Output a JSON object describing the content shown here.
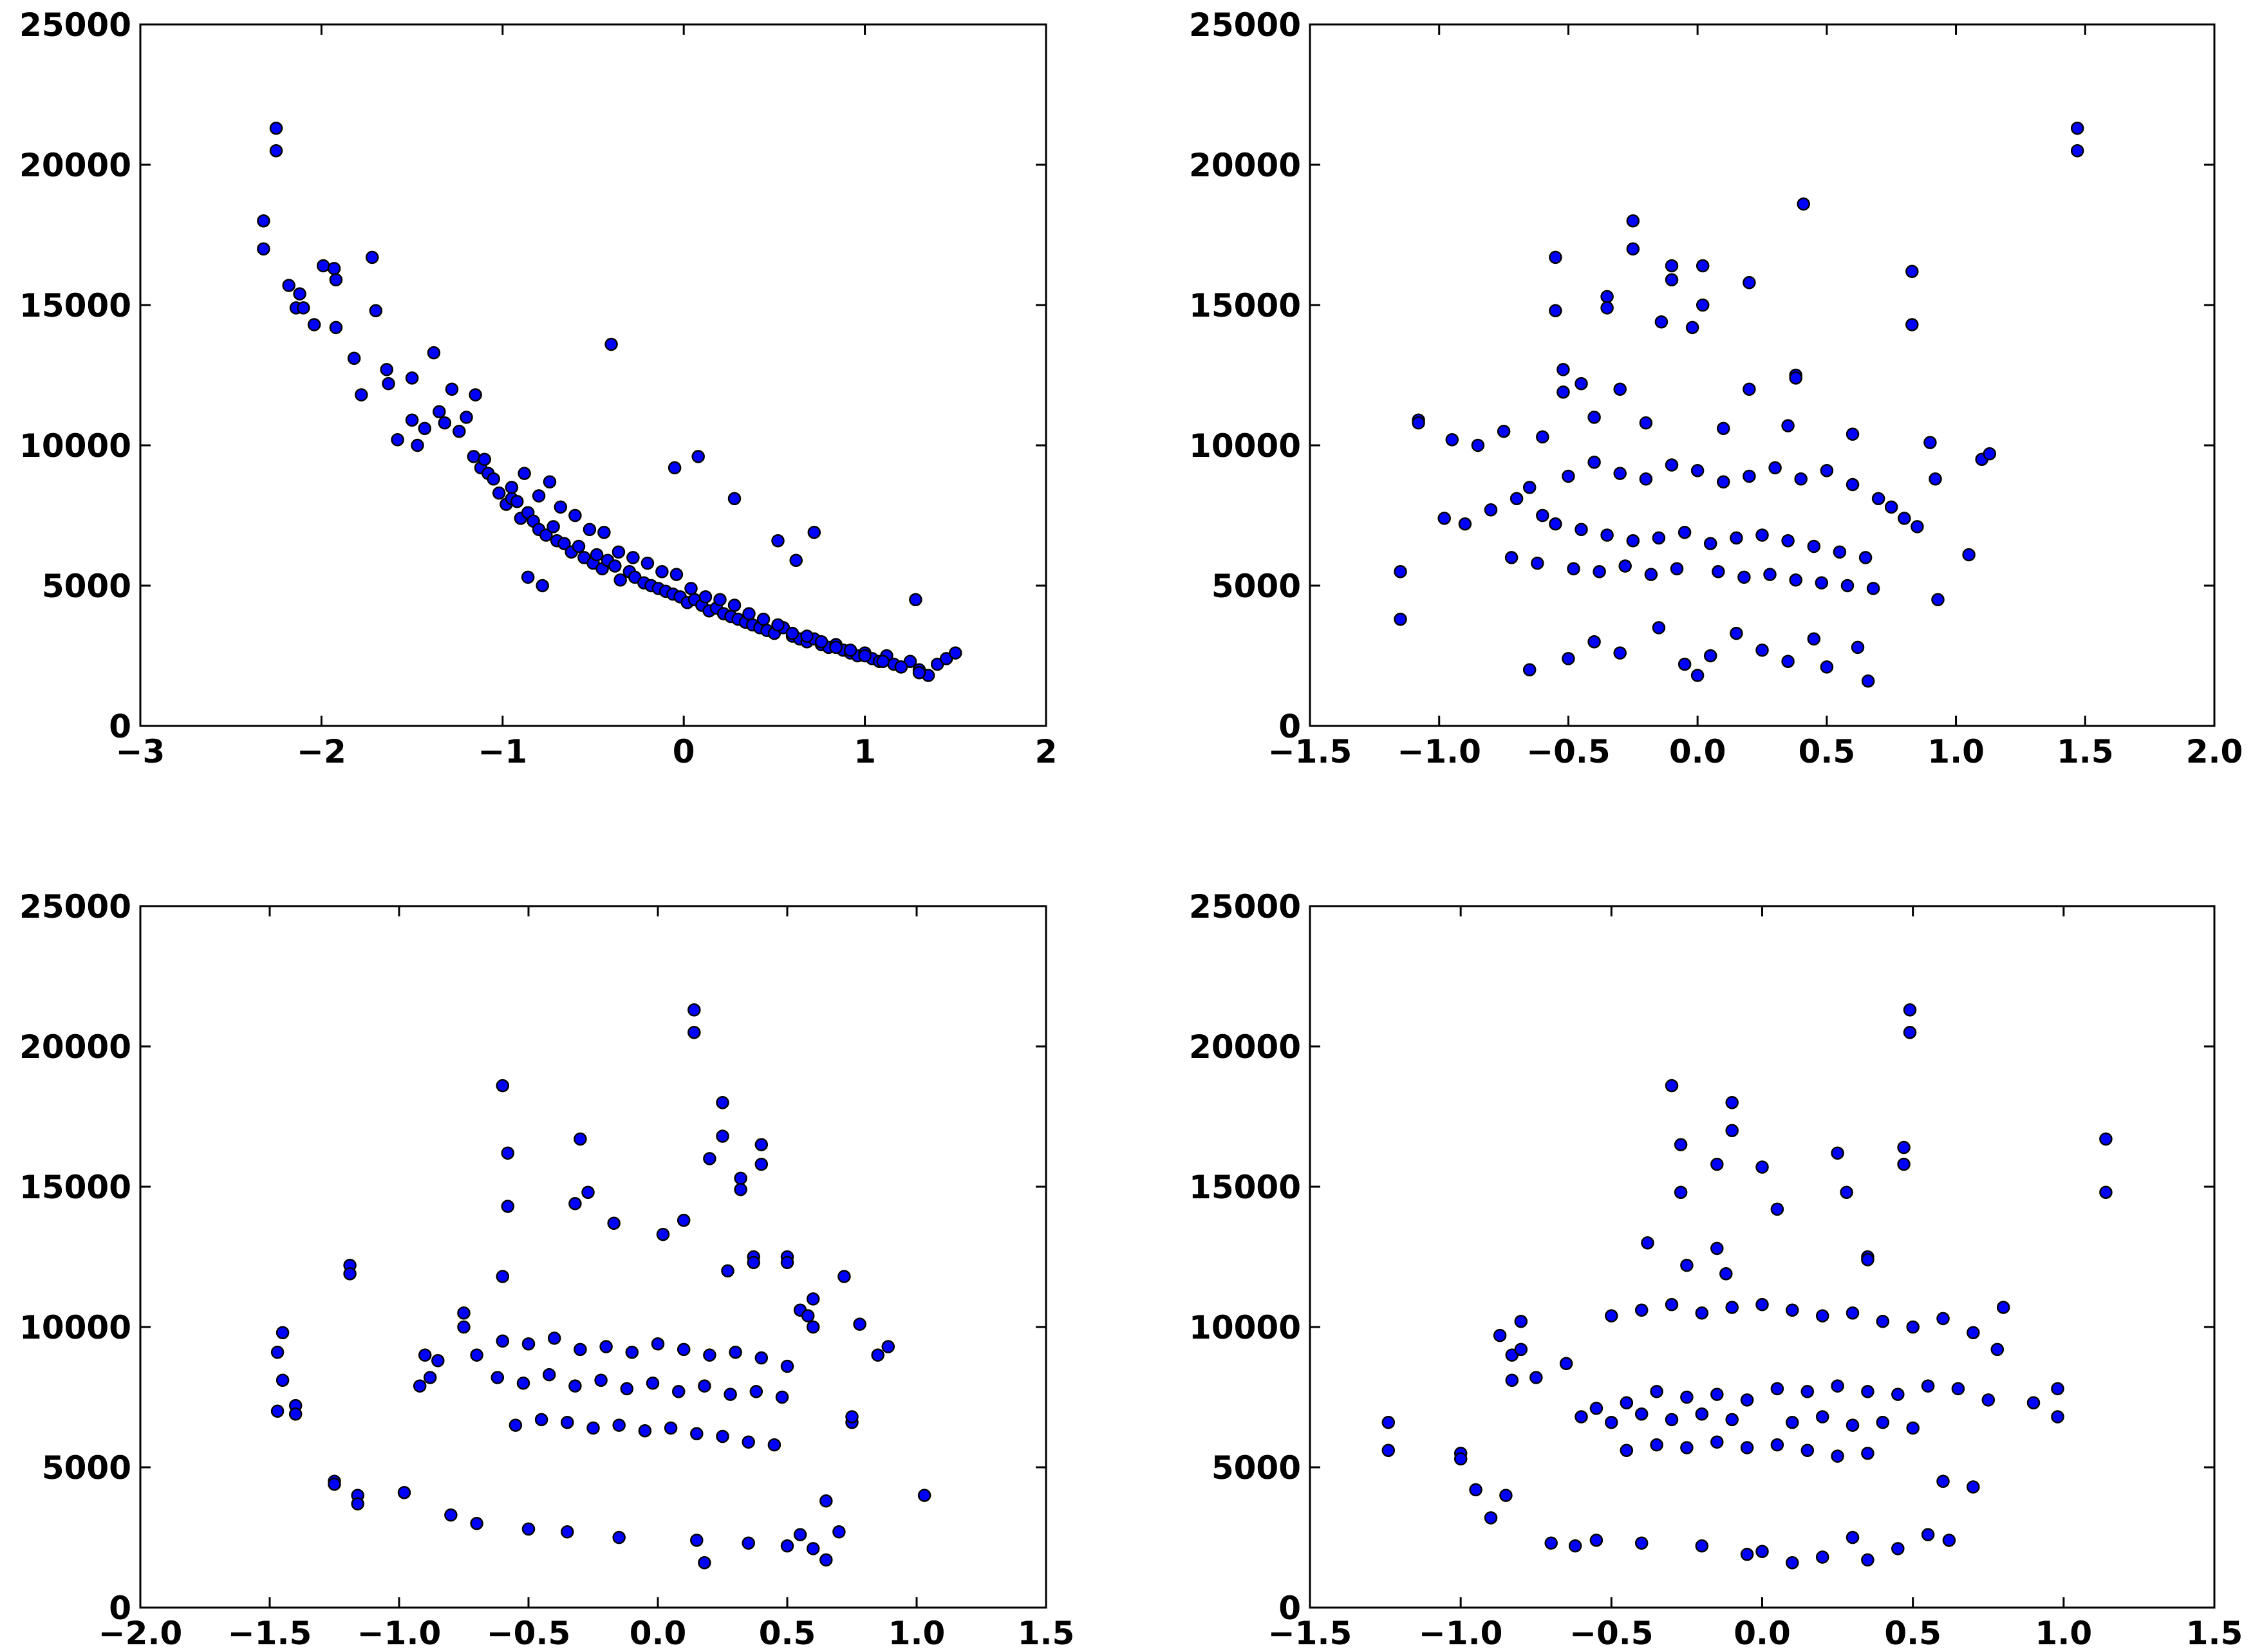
{
  "figure": {
    "point_color": "#0000ff",
    "edge_color": "#000000",
    "background": "#ffffff"
  },
  "chart_data": [
    {
      "type": "scatter",
      "title": "",
      "xlabel": "",
      "ylabel": "",
      "xlim": [
        -3,
        2
      ],
      "ylim": [
        0,
        25000
      ],
      "xticks": [
        -3,
        -2,
        -1,
        0,
        1,
        2
      ],
      "xtick_labels": [
        "−3",
        "−2",
        "−1",
        "0",
        "1",
        "2"
      ],
      "yticks": [
        0,
        5000,
        10000,
        15000,
        20000,
        25000
      ],
      "ytick_labels": [
        "0",
        "5000",
        "10000",
        "15000",
        "20000",
        "25000"
      ],
      "grid": false,
      "points": {
        "x": [
          -2.32,
          -2.32,
          -2.25,
          -2.25,
          -2.18,
          -2.14,
          -2.12,
          -2.1,
          -2.04,
          -1.99,
          -1.93,
          -1.92,
          -1.92,
          -1.82,
          -1.78,
          -1.72,
          -1.7,
          -1.64,
          -1.63,
          -1.58,
          -1.5,
          -1.5,
          -1.47,
          -1.43,
          -1.38,
          -1.35,
          -1.32,
          -1.28,
          -1.24,
          -1.2,
          -1.16,
          -1.15,
          -1.12,
          -1.08,
          -1.05,
          -1.02,
          -0.98,
          -0.95,
          -0.92,
          -0.9,
          -0.86,
          -0.83,
          -0.8,
          -0.76,
          -0.72,
          -0.7,
          -0.66,
          -0.62,
          -0.58,
          -0.55,
          -0.5,
          -0.48,
          -0.45,
          -0.42,
          -0.38,
          -0.35,
          -0.3,
          -0.27,
          -0.22,
          -0.18,
          -0.14,
          -0.1,
          -0.06,
          -0.02,
          0.02,
          0.06,
          0.1,
          0.14,
          0.18,
          0.22,
          0.26,
          0.3,
          0.34,
          0.38,
          0.42,
          0.46,
          0.5,
          0.55,
          0.6,
          0.64,
          0.68,
          0.72,
          0.76,
          0.8,
          0.84,
          0.88,
          0.92,
          0.96,
          1.0,
          1.04,
          1.08,
          1.12,
          1.16,
          1.2,
          1.25,
          1.3,
          1.35,
          1.4,
          1.45,
          1.5,
          -1.1,
          -0.95,
          -0.88,
          -0.8,
          -0.74,
          -0.68,
          -0.6,
          -0.52,
          -0.44,
          -0.36,
          -0.28,
          -0.2,
          -0.12,
          -0.04,
          0.04,
          0.12,
          0.2,
          0.28,
          0.36,
          0.44,
          0.52,
          0.6,
          0.68,
          0.76,
          0.84,
          0.92,
          1.0,
          1.1,
          1.2,
          1.3,
          -0.4,
          0.08,
          0.28,
          -0.05,
          0.72,
          0.52,
          1.28,
          0.62,
          -0.86,
          -0.78
        ],
        "y": [
          18000,
          17000,
          21300,
          20500,
          15700,
          14900,
          15400,
          14900,
          14300,
          16400,
          16300,
          15900,
          14200,
          13100,
          11800,
          16700,
          14800,
          12700,
          12200,
          10200,
          12400,
          10900,
          10000,
          10600,
          13300,
          11200,
          10800,
          12000,
          10500,
          11000,
          9600,
          11800,
          9200,
          9000,
          8800,
          8300,
          7900,
          8100,
          8000,
          7400,
          7600,
          7300,
          7000,
          6800,
          7100,
          6600,
          6500,
          6200,
          6400,
          6000,
          5800,
          6100,
          5600,
          5900,
          5700,
          5200,
          5500,
          5300,
          5100,
          5000,
          4900,
          4800,
          4700,
          4600,
          4400,
          4500,
          4300,
          4100,
          4200,
          4000,
          3900,
          3800,
          3700,
          3600,
          3500,
          3400,
          3300,
          3500,
          3200,
          3100,
          3000,
          3100,
          2900,
          2800,
          2900,
          2700,
          2600,
          2500,
          2600,
          2400,
          2300,
          2500,
          2200,
          2100,
          2300,
          2000,
          1800,
          2200,
          2400,
          2600,
          9500,
          8500,
          9000,
          8200,
          8700,
          7800,
          7500,
          7000,
          6900,
          6200,
          6000,
          5800,
          5500,
          5400,
          4900,
          4600,
          4500,
          4300,
          4000,
          3800,
          3600,
          3300,
          3200,
          3000,
          2800,
          2700,
          2500,
          2300,
          2100,
          1900,
          13600,
          9600,
          8100,
          9200,
          6900,
          6600,
          4500,
          5900,
          5300,
          5000
        ]
      }
    },
    {
      "type": "scatter",
      "title": "",
      "xlabel": "",
      "ylabel": "",
      "xlim": [
        -1.5,
        2.0
      ],
      "ylim": [
        0,
        25000
      ],
      "xticks": [
        -1.5,
        -1.0,
        -0.5,
        0.0,
        0.5,
        1.0,
        1.5,
        2.0
      ],
      "xtick_labels": [
        "−1.5",
        "−1.0",
        "−0.5",
        "0.0",
        "0.5",
        "1.0",
        "1.5",
        "2.0"
      ],
      "yticks": [
        0,
        5000,
        10000,
        15000,
        20000,
        25000
      ],
      "ytick_labels": [
        "0",
        "5000",
        "10000",
        "15000",
        "20000",
        "25000"
      ],
      "grid": false,
      "points": {
        "x": [
          1.47,
          1.47,
          0.41,
          -0.25,
          -0.25,
          -0.55,
          -0.55,
          -0.1,
          -0.1,
          0.02,
          0.02,
          -0.35,
          -0.35,
          0.83,
          0.83,
          0.2,
          -0.14,
          -0.02,
          0.38,
          0.38,
          -0.3,
          -0.45,
          -0.52,
          -0.52,
          -0.4,
          0.2,
          -1.08,
          -1.08,
          -0.95,
          -0.85,
          -0.75,
          -0.6,
          -0.2,
          0.1,
          0.35,
          0.6,
          0.9,
          1.1,
          1.13,
          1.05,
          0.93,
          -0.98,
          -1.15,
          -1.15,
          -0.65,
          -0.7,
          -0.8,
          -0.9,
          -0.5,
          -0.4,
          -0.3,
          -0.2,
          -0.1,
          0.0,
          0.1,
          0.2,
          0.3,
          0.4,
          0.5,
          0.6,
          0.7,
          0.75,
          0.8,
          0.85,
          0.92,
          -0.6,
          -0.55,
          -0.45,
          -0.35,
          -0.25,
          -0.15,
          -0.05,
          0.05,
          0.15,
          0.25,
          0.35,
          0.45,
          0.55,
          0.65,
          -0.72,
          -0.62,
          -0.48,
          -0.38,
          -0.28,
          -0.18,
          -0.08,
          0.08,
          0.18,
          0.28,
          0.38,
          0.48,
          0.58,
          0.68,
          -0.15,
          0.15,
          -0.4,
          0.45,
          0.62,
          -0.3,
          0.25,
          0.05,
          -0.5,
          0.35,
          -0.05,
          0.5,
          -0.65,
          0.0,
          0.66
        ],
        "y": [
          21300,
          20500,
          18600,
          18000,
          17000,
          16700,
          14800,
          16400,
          15900,
          16400,
          15000,
          15300,
          14900,
          16200,
          14300,
          15800,
          14400,
          14200,
          12500,
          12400,
          12000,
          12200,
          12700,
          11900,
          11000,
          12000,
          10900,
          10800,
          10200,
          10000,
          10500,
          10300,
          10800,
          10600,
          10700,
          10400,
          10100,
          9500,
          9700,
          6100,
          4500,
          7400,
          5500,
          3800,
          8500,
          8100,
          7700,
          7200,
          8900,
          9400,
          9000,
          8800,
          9300,
          9100,
          8700,
          8900,
          9200,
          8800,
          9100,
          8600,
          8100,
          7800,
          7400,
          7100,
          8800,
          7500,
          7200,
          7000,
          6800,
          6600,
          6700,
          6900,
          6500,
          6700,
          6800,
          6600,
          6400,
          6200,
          6000,
          6000,
          5800,
          5600,
          5500,
          5700,
          5400,
          5600,
          5500,
          5300,
          5400,
          5200,
          5100,
          5000,
          4900,
          3500,
          3300,
          3000,
          3100,
          2800,
          2600,
          2700,
          2500,
          2400,
          2300,
          2200,
          2100,
          2000,
          1800,
          1600
        ]
      }
    },
    {
      "type": "scatter",
      "title": "",
      "xlabel": "",
      "ylabel": "",
      "xlim": [
        -2.0,
        1.5
      ],
      "ylim": [
        0,
        25000
      ],
      "xticks": [
        -2.0,
        -1.5,
        -1.0,
        -0.5,
        0.0,
        0.5,
        1.0,
        1.5
      ],
      "xtick_labels": [
        "−2.0",
        "−1.5",
        "−1.0",
        "−0.5",
        "0.0",
        "0.5",
        "1.0",
        "1.5"
      ],
      "yticks": [
        0,
        5000,
        10000,
        15000,
        20000,
        25000
      ],
      "ytick_labels": [
        "0",
        "5000",
        "10000",
        "15000",
        "20000",
        "25000"
      ],
      "grid": false,
      "points": {
        "x": [
          0.14,
          0.14,
          -0.6,
          0.25,
          0.25,
          -0.3,
          -0.27,
          0.4,
          0.4,
          -0.58,
          -0.58,
          0.2,
          -0.32,
          0.32,
          0.32,
          -0.17,
          0.02,
          0.1,
          0.5,
          0.5,
          0.37,
          0.37,
          0.27,
          -0.6,
          -1.19,
          -1.19,
          -1.47,
          -1.47,
          -1.45,
          -1.45,
          -1.4,
          -1.4,
          -1.25,
          -1.25,
          -1.16,
          -1.16,
          -0.98,
          -0.88,
          -0.9,
          -0.92,
          -0.85,
          -0.75,
          -0.75,
          0.6,
          0.55,
          0.58,
          0.72,
          0.85,
          0.89,
          1.03,
          0.75,
          0.75,
          0.78,
          0.6,
          -0.7,
          -0.6,
          -0.5,
          -0.4,
          -0.3,
          -0.2,
          -0.1,
          0.0,
          0.1,
          0.2,
          0.3,
          0.4,
          0.5,
          -0.62,
          -0.52,
          -0.42,
          -0.32,
          -0.22,
          -0.12,
          -0.02,
          0.08,
          0.18,
          0.28,
          0.38,
          0.48,
          -0.55,
          -0.45,
          -0.35,
          -0.25,
          -0.15,
          -0.05,
          0.05,
          0.15,
          0.25,
          0.35,
          0.45,
          -0.8,
          -0.7,
          0.65,
          0.7,
          0.55,
          -0.5,
          -0.35,
          -0.15,
          0.15,
          0.35,
          0.5,
          0.6,
          0.65,
          0.18
        ],
        "y": [
          21300,
          20500,
          18600,
          18000,
          16800,
          16700,
          14800,
          16500,
          15800,
          16200,
          14300,
          16000,
          14400,
          15300,
          14900,
          13700,
          13300,
          13800,
          12500,
          12300,
          12500,
          12300,
          12000,
          11800,
          12200,
          11900,
          9100,
          7000,
          9800,
          8100,
          7200,
          6900,
          4500,
          4400,
          4000,
          3700,
          4100,
          8200,
          9000,
          7900,
          8800,
          10500,
          10000,
          11000,
          10600,
          10400,
          11800,
          9000,
          9300,
          4000,
          6600,
          6800,
          10100,
          10000,
          9000,
          9500,
          9400,
          9600,
          9200,
          9300,
          9100,
          9400,
          9200,
          9000,
          9100,
          8900,
          8600,
          8200,
          8000,
          8300,
          7900,
          8100,
          7800,
          8000,
          7700,
          7900,
          7600,
          7700,
          7500,
          6500,
          6700,
          6600,
          6400,
          6500,
          6300,
          6400,
          6200,
          6100,
          5900,
          5800,
          3300,
          3000,
          3800,
          2700,
          2600,
          2800,
          2700,
          2500,
          2400,
          2300,
          2200,
          2100,
          1700,
          1600
        ]
      }
    },
    {
      "type": "scatter",
      "title": "",
      "xlabel": "",
      "ylabel": "",
      "xlim": [
        -1.5,
        1.5
      ],
      "ylim": [
        0,
        25000
      ],
      "xticks": [
        -1.5,
        -1.0,
        -0.5,
        0.0,
        0.5,
        1.0,
        1.5
      ],
      "xtick_labels": [
        "−1.5",
        "−1.0",
        "−0.5",
        "0.0",
        "0.5",
        "1.0",
        "1.5"
      ],
      "yticks": [
        0,
        5000,
        10000,
        15000,
        20000,
        25000
      ],
      "ytick_labels": [
        "0",
        "5000",
        "10000",
        "15000",
        "20000",
        "25000"
      ],
      "grid": false,
      "points": {
        "x": [
          0.49,
          0.49,
          -0.3,
          -0.1,
          -0.1,
          1.14,
          1.14,
          0.47,
          0.47,
          -0.27,
          -0.27,
          -0.15,
          0.0,
          0.25,
          0.28,
          0.05,
          -0.38,
          -0.15,
          -0.12,
          -0.25,
          0.35,
          0.35,
          -1.24,
          -1.24,
          -1.0,
          -1.0,
          -0.9,
          -0.87,
          -0.83,
          -0.83,
          -0.8,
          -0.8,
          -0.5,
          -0.4,
          -0.3,
          -0.2,
          -0.1,
          0.0,
          0.1,
          0.2,
          0.3,
          0.4,
          0.5,
          0.6,
          0.7,
          0.8,
          0.9,
          0.98,
          0.98,
          0.78,
          -0.95,
          -0.85,
          -0.75,
          -0.65,
          -0.55,
          -0.45,
          -0.35,
          -0.25,
          -0.15,
          -0.05,
          0.05,
          0.15,
          0.25,
          0.35,
          0.45,
          0.55,
          0.65,
          0.75,
          -0.6,
          -0.5,
          -0.4,
          -0.3,
          -0.2,
          -0.1,
          0.1,
          0.2,
          0.3,
          0.4,
          0.5,
          -0.45,
          -0.35,
          -0.25,
          -0.15,
          -0.05,
          0.05,
          0.15,
          0.25,
          0.35,
          0.6,
          0.7,
          -0.7,
          -0.62,
          0.62,
          0.55,
          -0.4,
          -0.2,
          0.0,
          0.2,
          0.35,
          0.45,
          -0.05,
          0.3,
          -0.55,
          0.1
        ],
        "y": [
          21300,
          20500,
          18600,
          18000,
          17000,
          16700,
          14800,
          16400,
          15800,
          16500,
          14800,
          15800,
          15700,
          16200,
          14800,
          14200,
          13000,
          12800,
          11900,
          12200,
          12500,
          12400,
          6600,
          5600,
          5500,
          5300,
          3200,
          9700,
          9000,
          8100,
          9200,
          10200,
          10400,
          10600,
          10800,
          10500,
          10700,
          10800,
          10600,
          10400,
          10500,
          10200,
          10000,
          10300,
          9800,
          10700,
          7300,
          7800,
          6800,
          9200,
          4200,
          4000,
          8200,
          8700,
          7100,
          7300,
          7700,
          7500,
          7600,
          7400,
          7800,
          7700,
          7900,
          7700,
          7600,
          7900,
          7800,
          7400,
          6800,
          6600,
          6900,
          6700,
          6900,
          6700,
          6600,
          6800,
          6500,
          6600,
          6400,
          5600,
          5800,
          5700,
          5900,
          5700,
          5800,
          5600,
          5400,
          5500,
          4500,
          4300,
          2300,
          2200,
          2400,
          2600,
          2300,
          2200,
          2000,
          1800,
          1700,
          2100,
          1900,
          2500,
          2400,
          1600
        ]
      }
    }
  ]
}
